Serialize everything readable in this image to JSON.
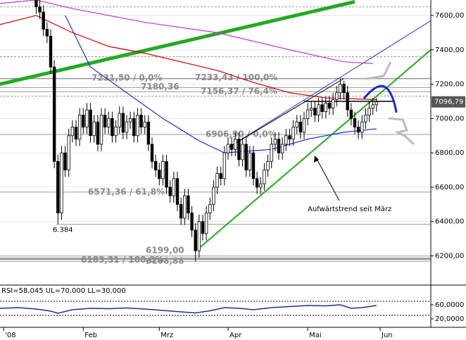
{
  "chart_data": [
    {
      "type": "candlestick",
      "x": [
        10,
        11,
        12,
        13,
        14,
        15,
        16,
        17,
        18,
        19,
        20,
        21,
        22,
        23,
        24,
        25,
        26,
        27,
        28,
        29,
        30,
        31,
        32,
        33,
        34,
        35,
        36,
        37,
        38,
        39,
        40,
        41,
        42,
        43,
        44,
        45,
        46,
        47,
        48,
        49,
        50,
        51,
        52,
        53,
        54,
        55,
        56,
        57,
        58,
        59,
        60,
        61,
        62,
        63,
        64,
        65,
        66,
        67,
        68,
        69,
        70,
        71,
        72,
        73,
        74,
        75,
        76,
        77,
        78,
        79,
        80,
        81,
        82,
        83,
        84,
        85,
        86,
        87,
        88,
        89,
        90,
        91,
        92,
        93,
        94,
        95,
        96,
        97,
        98,
        99,
        100,
        101,
        102,
        103,
        104
      ],
      "open": [
        7700,
        7650,
        7620,
        7520,
        7480,
        7300,
        6750,
        6450,
        6800,
        6700,
        6900,
        6950,
        6880,
        7020,
        6950,
        7050,
        6900,
        6980,
        6850,
        7020,
        6950,
        7000,
        6900,
        6950,
        7030,
        6920,
        6980,
        7000,
        6900,
        7020,
        6950,
        6980,
        6850,
        6750,
        6700,
        6650,
        6750,
        6600,
        6550,
        6650,
        6500,
        6420,
        6550,
        6450,
        6350,
        6230,
        6400,
        6330,
        6450,
        6500,
        6600,
        6680,
        6650,
        6800,
        6850,
        6820,
        6880,
        6760,
        6850,
        6700,
        6800,
        6650,
        6600,
        6620,
        6700,
        6750,
        6850,
        6880,
        6800,
        6850,
        6900,
        6880,
        6950,
        6980,
        6920,
        7000,
        7050,
        7060,
        7020,
        7080,
        7040,
        7090,
        7060,
        7110,
        7150,
        7200,
        7150,
        7050,
        7000,
        6950,
        6920,
        6980,
        7020,
        7060,
        7080
      ],
      "high": [
        7740,
        7690,
        7660,
        7560,
        7520,
        7340,
        6790,
        6840,
        6840,
        6940,
        6990,
        6990,
        7060,
        7060,
        7090,
        7090,
        7020,
        7020,
        7060,
        7060,
        7040,
        7040,
        6990,
        7070,
        7070,
        7020,
        7040,
        7040,
        7060,
        7060,
        7020,
        7020,
        6890,
        6790,
        6740,
        6790,
        6790,
        6640,
        6690,
        6690,
        6540,
        6590,
        6590,
        6490,
        6390,
        6440,
        6440,
        6490,
        6540,
        6640,
        6720,
        6720,
        6840,
        6890,
        6890,
        6920,
        6920,
        6890,
        6890,
        6840,
        6840,
        6690,
        6660,
        6740,
        6790,
        6890,
        6920,
        6920,
        6890,
        6940,
        6940,
        6990,
        7020,
        7020,
        7040,
        7090,
        7100,
        7100,
        7120,
        7120,
        7130,
        7130,
        7150,
        7190,
        7233,
        7220,
        7190,
        7090,
        7040,
        6990,
        7020,
        7060,
        7100,
        7120,
        7120
      ],
      "low": [
        7610,
        7580,
        7480,
        7440,
        7260,
        6710,
        6384,
        6410,
        6660,
        6660,
        6860,
        6840,
        6840,
        6910,
        6910,
        6860,
        6860,
        6810,
        6810,
        6910,
        6910,
        6860,
        6860,
        6910,
        6880,
        6880,
        6940,
        6860,
        6860,
        6910,
        6910,
        6810,
        6710,
        6660,
        6610,
        6610,
        6560,
        6510,
        6510,
        6460,
        6380,
        6380,
        6410,
        6310,
        6167,
        6190,
        6290,
        6290,
        6410,
        6460,
        6560,
        6610,
        6610,
        6760,
        6780,
        6780,
        6720,
        6720,
        6660,
        6660,
        6610,
        6560,
        6560,
        6580,
        6660,
        6710,
        6810,
        6760,
        6760,
        6810,
        6840,
        6840,
        6910,
        6880,
        6880,
        6960,
        7010,
        6980,
        6980,
        7000,
        7000,
        7020,
        7020,
        7070,
        7110,
        7110,
        7010,
        6960,
        6910,
        6880,
        6880,
        6940,
        6980,
        7020,
        7040
      ],
      "close": [
        7650,
        7620,
        7520,
        7480,
        7300,
        6750,
        6450,
        6800,
        6700,
        6900,
        6950,
        6880,
        7020,
        6950,
        7050,
        6900,
        6980,
        6850,
        7020,
        6950,
        7000,
        6900,
        6950,
        7030,
        6920,
        6980,
        7000,
        6900,
        7020,
        6950,
        6980,
        6850,
        6750,
        6700,
        6650,
        6750,
        6600,
        6550,
        6650,
        6500,
        6420,
        6550,
        6450,
        6350,
        6230,
        6400,
        6330,
        6450,
        6500,
        6600,
        6680,
        6650,
        6800,
        6850,
        6820,
        6880,
        6760,
        6850,
        6700,
        6800,
        6650,
        6600,
        6620,
        6700,
        6750,
        6850,
        6880,
        6800,
        6850,
        6900,
        6880,
        6950,
        6980,
        6920,
        7000,
        7050,
        7060,
        7020,
        7080,
        7040,
        7090,
        7060,
        7110,
        7150,
        7200,
        7150,
        7050,
        7000,
        6950,
        6920,
        6980,
        7020,
        7060,
        7080,
        7097
      ],
      "xlim": [
        0,
        119
      ],
      "xticks": [
        {
          "value": 1,
          "label": "'08"
        },
        {
          "value": 23,
          "label": "Feb"
        },
        {
          "value": 44,
          "label": "Mrz"
        },
        {
          "value": 63,
          "label": "Apr"
        },
        {
          "value": 85,
          "label": "Mai"
        },
        {
          "value": 105,
          "label": "Jun"
        }
      ],
      "ylim": [
        6030,
        7690
      ],
      "yticks": [
        {
          "value": 7600,
          "label": "7600,00"
        },
        {
          "value": 7400,
          "label": "7400,00"
        },
        {
          "value": 7200,
          "label": "7200,00"
        },
        {
          "value": 7000,
          "label": "7000,00"
        },
        {
          "value": 6800,
          "label": "6800,00"
        },
        {
          "value": 6600,
          "label": "6600,00"
        },
        {
          "value": 6400,
          "label": "6400,00"
        },
        {
          "value": 6200,
          "label": "6200,00"
        }
      ],
      "last_price": {
        "value": 7096.79,
        "label": "7096,79"
      },
      "series": [
        {
          "color": "#cc0000",
          "x": [
            0,
            10,
            20,
            30,
            40,
            50,
            60,
            70,
            80,
            90,
            104
          ],
          "values": [
            7547,
            7600,
            7500,
            7420,
            7380,
            7330,
            7280,
            7210,
            7150,
            7120,
            7110
          ]
        },
        {
          "color": "#2233cc",
          "x": [
            18,
            25,
            35,
            45,
            55,
            62,
            75,
            85,
            95,
            104
          ],
          "values": [
            7600,
            7300,
            7150,
            7000,
            6870,
            6800,
            6820,
            6880,
            6920,
            6940
          ]
        },
        {
          "color": "#cc33cc",
          "x": [
            0,
            10,
            20,
            40,
            60,
            80,
            95,
            103
          ],
          "values": [
            7670,
            7690,
            7640,
            7560,
            7500,
            7400,
            7330,
            7320
          ]
        }
      ],
      "trendlines": [
        {
          "color": "#22aa22",
          "x": [
            0,
            98
          ],
          "values": [
            7200,
            7680
          ],
          "width": 5
        },
        {
          "color": "#22aa22",
          "x": [
            55,
            119
          ],
          "values": [
            6245,
            7400
          ],
          "width": 2
        },
        {
          "color": "#2233cc",
          "x": [
            63,
            119
          ],
          "values": [
            6830,
            7570
          ],
          "width": 1
        },
        {
          "color": "#000000",
          "x": [
            63,
            95
          ],
          "values": [
            6830,
            7233
          ],
          "width": 1
        },
        {
          "color": "#000000",
          "x": [
            84,
            109
          ],
          "values": [
            7100,
            7100
          ],
          "width": 1.5
        }
      ],
      "dashed_levels": [
        7650,
        7360,
        7130
      ],
      "levels": [
        {
          "value": 7231.5,
          "label": "7231,50 / 0,0%"
        },
        {
          "value": 7180.36,
          "label": "7180,36"
        },
        {
          "value": 7233.43,
          "label": "7233,43 / 100,0%"
        },
        {
          "value": 7156.37,
          "label": "7156,37 / 76,4%"
        },
        {
          "value": 6906.9,
          "label": "6906,90 / 0,0%"
        },
        {
          "value": 6571.36,
          "label": "6571,36 / 61,8%"
        },
        {
          "value": 6384,
          "label": "6.384"
        },
        {
          "value": 6199,
          "label": "6199,00"
        },
        {
          "value": 6168.88,
          "label": "6168,88"
        },
        {
          "value": 6183.31,
          "label": "6183,31 / 100,0%"
        }
      ],
      "annotation": "Aufwärtstrend seit März"
    },
    {
      "type": "line",
      "title": "RSI=58,045 UL=70,000 LL=30,000",
      "x": [
        0,
        5,
        10,
        14,
        16,
        20,
        25,
        30,
        35,
        40,
        45,
        50,
        54,
        58,
        62,
        66,
        70,
        75,
        80,
        85,
        90,
        94,
        97,
        100,
        104
      ],
      "values": [
        50,
        52,
        48,
        42,
        36,
        46,
        50,
        49,
        51,
        48,
        44,
        40,
        37,
        43,
        52,
        50,
        46,
        52,
        55,
        58,
        57,
        60,
        50,
        52,
        58
      ],
      "color": "#1f2f8f",
      "ylim": [
        -10,
        90
      ],
      "yticks": [
        {
          "value": 60,
          "label": "60,0000"
        },
        {
          "value": 20,
          "label": "20,0000"
        }
      ],
      "bands": [
        70,
        30
      ]
    }
  ]
}
